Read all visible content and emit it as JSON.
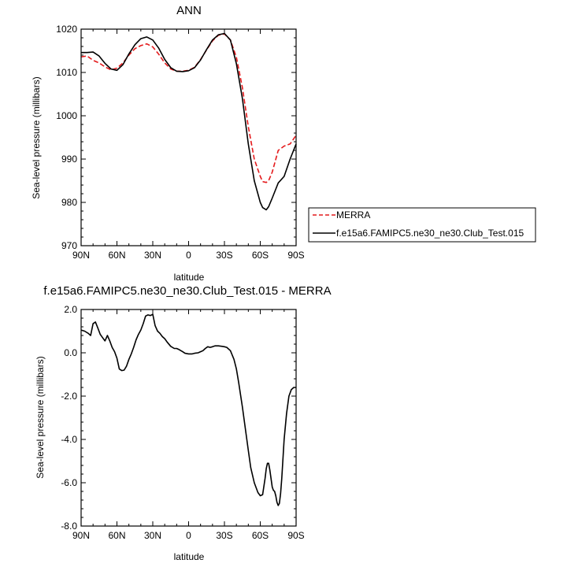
{
  "chart_data": [
    {
      "type": "line",
      "title": "ANN",
      "xlabel": "latitude",
      "ylabel": "Sea-level pressure (millibars)",
      "xlim": [
        90,
        -90
      ],
      "ylim": [
        970,
        1020
      ],
      "xticks": [
        90,
        60,
        30,
        0,
        -30,
        -60,
        -90
      ],
      "xtick_labels": [
        "90N",
        "60N",
        "30N",
        "0",
        "30S",
        "60S",
        "90S"
      ],
      "yticks": [
        970,
        980,
        990,
        1000,
        1010,
        1020
      ],
      "ytick_labels": [
        "970",
        "980",
        "990",
        "1000",
        "1010",
        "1020"
      ],
      "grid": false,
      "legend": {
        "placement": "outside-right"
      },
      "series": [
        {
          "name": "MERRA",
          "color": "#e41a1c",
          "dash": "dashed",
          "x": [
            90,
            85,
            80,
            75,
            70,
            65,
            60,
            55,
            50,
            45,
            40,
            35,
            30,
            25,
            20,
            15,
            10,
            5,
            0,
            -5,
            -10,
            -15,
            -20,
            -25,
            -30,
            -35,
            -40,
            -45,
            -50,
            -55,
            -60,
            -62,
            -65,
            -67,
            -70,
            -75,
            -80,
            -85,
            -90
          ],
          "y": [
            1013.6,
            1013.8,
            1012.8,
            1012.2,
            1011.3,
            1010.6,
            1011.0,
            1012.2,
            1014.0,
            1015.5,
            1016.2,
            1016.6,
            1015.9,
            1014.2,
            1012.2,
            1010.8,
            1010.3,
            1010.3,
            1010.5,
            1011.2,
            1013.0,
            1015.2,
            1017.3,
            1018.6,
            1018.9,
            1017.5,
            1013.5,
            1006.5,
            997.5,
            990.0,
            986.0,
            984.8,
            984.6,
            985.0,
            987.0,
            992.0,
            993.0,
            993.5,
            995.5
          ]
        },
        {
          "name": "f.e15a6.FAMIPC5.ne30_ne30.Club_Test.015",
          "color": "#000000",
          "dash": "solid",
          "x": [
            90,
            85,
            80,
            75,
            70,
            65,
            60,
            55,
            50,
            45,
            40,
            35,
            30,
            25,
            20,
            15,
            10,
            5,
            0,
            -5,
            -10,
            -15,
            -20,
            -25,
            -30,
            -35,
            -40,
            -45,
            -50,
            -55,
            -60,
            -62,
            -65,
            -67,
            -70,
            -75,
            -80,
            -85,
            -90
          ],
          "y": [
            1014.6,
            1014.6,
            1014.7,
            1013.8,
            1012.1,
            1010.8,
            1010.5,
            1011.8,
            1014.3,
            1016.4,
            1017.8,
            1018.2,
            1017.5,
            1015.6,
            1013.0,
            1011.1,
            1010.3,
            1010.2,
            1010.4,
            1011.1,
            1012.9,
            1015.3,
            1017.5,
            1018.7,
            1019.0,
            1017.5,
            1012.0,
            1004.0,
            993.5,
            985.0,
            980.0,
            978.8,
            978.3,
            979.0,
            981.0,
            984.5,
            986.0,
            990.0,
            993.5
          ]
        }
      ]
    },
    {
      "type": "line",
      "title": "f.e15a6.FAMIPC5.ne30_ne30.Club_Test.015 - MERRA",
      "xlabel": "latitude",
      "ylabel": "Sea-level pressure (millibars)",
      "xlim": [
        90,
        -90
      ],
      "ylim": [
        -8,
        2
      ],
      "xticks": [
        90,
        60,
        30,
        0,
        -30,
        -60,
        -90
      ],
      "xtick_labels": [
        "90N",
        "60N",
        "30N",
        "0",
        "30S",
        "60S",
        "90S"
      ],
      "yticks": [
        -8,
        -6,
        -4,
        -2,
        0,
        2
      ],
      "ytick_labels": [
        "-8.0",
        "-6.0",
        "-4.0",
        "-2.0",
        "0.0",
        "2.0"
      ],
      "grid": false,
      "series": [
        {
          "color": "#000000",
          "dash": "solid",
          "x": [
            90,
            87,
            84,
            82,
            80,
            78,
            76,
            74,
            72,
            70,
            68,
            66,
            64,
            62,
            60,
            58,
            56,
            54,
            52,
            50,
            48,
            46,
            44,
            42,
            40,
            38,
            36,
            34,
            32,
            30,
            28,
            26,
            24,
            22,
            20,
            18,
            15,
            12,
            10,
            8,
            5,
            3,
            0,
            -3,
            -5,
            -8,
            -10,
            -12,
            -14,
            -16,
            -18,
            -20,
            -22,
            -25,
            -28,
            -30,
            -32,
            -35,
            -38,
            -40,
            -42,
            -45,
            -48,
            -50,
            -52,
            -55,
            -58,
            -60,
            -62,
            -64,
            -65,
            -66,
            -67,
            -68,
            -70,
            -71,
            -72,
            -73,
            -74,
            -75,
            -76,
            -77,
            -78,
            -79,
            -80,
            -82,
            -84,
            -86,
            -88,
            -90
          ],
          "y": [
            1.05,
            1.0,
            0.9,
            0.8,
            1.35,
            1.42,
            1.15,
            0.85,
            0.7,
            0.55,
            0.8,
            0.55,
            0.25,
            0.05,
            -0.25,
            -0.75,
            -0.82,
            -0.8,
            -0.62,
            -0.3,
            -0.05,
            0.25,
            0.6,
            0.85,
            1.05,
            1.35,
            1.7,
            1.75,
            1.72,
            1.78,
            1.25,
            1.0,
            0.9,
            0.75,
            0.65,
            0.5,
            0.3,
            0.2,
            0.2,
            0.15,
            0.05,
            -0.02,
            -0.05,
            -0.05,
            -0.02,
            0.0,
            0.05,
            0.1,
            0.2,
            0.28,
            0.25,
            0.28,
            0.32,
            0.32,
            0.3,
            0.28,
            0.25,
            0.1,
            -0.3,
            -0.75,
            -1.4,
            -2.5,
            -3.7,
            -4.5,
            -5.3,
            -6.0,
            -6.45,
            -6.6,
            -6.55,
            -5.8,
            -5.35,
            -5.1,
            -5.1,
            -5.4,
            -6.2,
            -6.35,
            -6.4,
            -6.6,
            -6.9,
            -7.05,
            -6.95,
            -6.5,
            -5.8,
            -4.9,
            -4.0,
            -2.8,
            -2.0,
            -1.7,
            -1.6,
            -1.6
          ]
        }
      ]
    }
  ]
}
